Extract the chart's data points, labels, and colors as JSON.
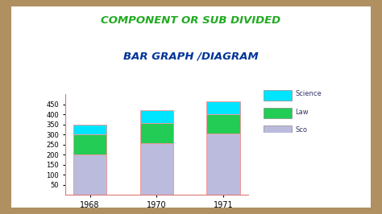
{
  "title_line1": "COMPONENT OR SUB DIVIDED",
  "title_line2": "BAR GRAPH /DIAGRAM",
  "years": [
    "1968",
    "1970",
    "1971"
  ],
  "science_values": [
    50,
    65,
    65
  ],
  "law_values": [
    100,
    100,
    95
  ],
  "sco_values": [
    200,
    255,
    305
  ],
  "colors": {
    "science": "#00E5FF",
    "law": "#22CC55",
    "sco": "#BBBBDD"
  },
  "legend_labels": [
    "Science",
    "Law",
    "Sco"
  ],
  "ylim": [
    0,
    500
  ],
  "yticks": [
    50,
    100,
    150,
    200,
    250,
    300,
    350,
    400,
    450
  ],
  "background_color": "#FFFFFF",
  "outer_bg": "#B09060",
  "inner_bg": "#FFFFFF",
  "title_color1": "#22AA22",
  "title_color2": "#003399",
  "bar_width": 0.5,
  "bar_edge_color": "#EE9999"
}
